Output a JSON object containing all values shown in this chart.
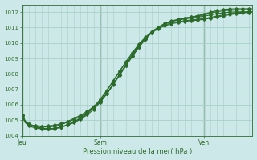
{
  "title": "Pression niveau de la mer( hPa )",
  "ylim": [
    1004.0,
    1012.5
  ],
  "yticks": [
    1004,
    1005,
    1006,
    1007,
    1008,
    1009,
    1010,
    1011,
    1012
  ],
  "bg_color": "#cce8e8",
  "grid_color": "#a8d0c8",
  "line_color": "#2d6b2d",
  "text_color": "#2d6b2d",
  "xtick_labels": [
    "Jeu",
    "Sam",
    "Ven"
  ],
  "xtick_positions": [
    0,
    24,
    56
  ],
  "total_points": 72,
  "lines": [
    [
      1005.3,
      1004.85,
      1004.72,
      1004.68,
      1004.65,
      1004.63,
      1004.62,
      1004.62,
      1004.63,
      1004.65,
      1004.68,
      1004.72,
      1004.78,
      1004.85,
      1004.93,
      1005.02,
      1005.12,
      1005.22,
      1005.33,
      1005.45,
      1005.58,
      1005.72,
      1005.88,
      1006.05,
      1006.25,
      1006.48,
      1006.74,
      1007.02,
      1007.32,
      1007.63,
      1007.94,
      1008.25,
      1008.56,
      1008.87,
      1009.17,
      1009.47,
      1009.75,
      1010.02,
      1010.27,
      1010.5,
      1010.7,
      1010.88,
      1011.03,
      1011.15,
      1011.25,
      1011.33,
      1011.4,
      1011.46,
      1011.51,
      1011.56,
      1011.6,
      1011.64,
      1011.68,
      1011.72,
      1011.77,
      1011.82,
      1011.87,
      1011.93,
      1011.99,
      1012.05,
      1012.1,
      1012.14,
      1012.17,
      1012.19,
      1012.2,
      1012.21,
      1012.22,
      1012.22,
      1012.22,
      1012.22,
      1012.22,
      1012.22
    ],
    [
      1005.3,
      1004.88,
      1004.73,
      1004.67,
      1004.63,
      1004.6,
      1004.58,
      1004.57,
      1004.57,
      1004.58,
      1004.61,
      1004.66,
      1004.72,
      1004.79,
      1004.87,
      1004.96,
      1005.05,
      1005.15,
      1005.26,
      1005.38,
      1005.51,
      1005.65,
      1005.81,
      1006.0,
      1006.21,
      1006.44,
      1006.7,
      1006.98,
      1007.28,
      1007.59,
      1007.91,
      1008.22,
      1008.54,
      1008.84,
      1009.14,
      1009.44,
      1009.72,
      1009.99,
      1010.24,
      1010.47,
      1010.68,
      1010.86,
      1011.02,
      1011.15,
      1011.26,
      1011.35,
      1011.42,
      1011.48,
      1011.53,
      1011.57,
      1011.61,
      1011.65,
      1011.68,
      1011.71,
      1011.75,
      1011.79,
      1011.83,
      1011.88,
      1011.93,
      1011.98,
      1012.02,
      1012.06,
      1012.09,
      1012.11,
      1012.12,
      1012.13,
      1012.14,
      1012.14,
      1012.14,
      1012.15,
      1012.15,
      1012.15
    ],
    [
      1005.2,
      1004.82,
      1004.65,
      1004.56,
      1004.5,
      1004.46,
      1004.44,
      1004.42,
      1004.42,
      1004.43,
      1004.46,
      1004.5,
      1004.55,
      1004.61,
      1004.68,
      1004.76,
      1004.85,
      1004.95,
      1005.07,
      1005.2,
      1005.35,
      1005.52,
      1005.71,
      1005.92,
      1006.16,
      1006.42,
      1006.7,
      1007.0,
      1007.32,
      1007.64,
      1007.97,
      1008.29,
      1008.62,
      1008.94,
      1009.25,
      1009.55,
      1009.83,
      1010.09,
      1010.32,
      1010.54,
      1010.73,
      1010.89,
      1011.03,
      1011.15,
      1011.24,
      1011.32,
      1011.38,
      1011.44,
      1011.48,
      1011.52,
      1011.56,
      1011.59,
      1011.62,
      1011.65,
      1011.68,
      1011.71,
      1011.75,
      1011.78,
      1011.82,
      1011.86,
      1011.9,
      1011.93,
      1011.96,
      1011.98,
      1012.0,
      1012.01,
      1012.01,
      1012.02,
      1012.02,
      1012.02,
      1012.03,
      1012.03
    ],
    [
      1005.3,
      1004.9,
      1004.73,
      1004.63,
      1004.55,
      1004.5,
      1004.46,
      1004.44,
      1004.43,
      1004.44,
      1004.46,
      1004.5,
      1004.55,
      1004.62,
      1004.7,
      1004.79,
      1004.89,
      1005.0,
      1005.13,
      1005.27,
      1005.44,
      1005.62,
      1005.83,
      1006.06,
      1006.31,
      1006.59,
      1006.88,
      1007.2,
      1007.52,
      1007.84,
      1008.16,
      1008.47,
      1008.78,
      1009.08,
      1009.38,
      1009.66,
      1009.92,
      1010.16,
      1010.38,
      1010.57,
      1010.73,
      1010.87,
      1010.99,
      1011.09,
      1011.17,
      1011.24,
      1011.3,
      1011.34,
      1011.38,
      1011.41,
      1011.44,
      1011.47,
      1011.49,
      1011.51,
      1011.54,
      1011.56,
      1011.59,
      1011.62,
      1011.66,
      1011.7,
      1011.74,
      1011.78,
      1011.82,
      1011.86,
      1011.9,
      1011.93,
      1011.96,
      1011.98,
      1012.0,
      1012.01,
      1012.02,
      1012.03
    ],
    [
      1005.3,
      1004.93,
      1004.77,
      1004.67,
      1004.6,
      1004.54,
      1004.5,
      1004.47,
      1004.46,
      1004.46,
      1004.48,
      1004.52,
      1004.57,
      1004.64,
      1004.72,
      1004.81,
      1004.91,
      1005.03,
      1005.16,
      1005.31,
      1005.47,
      1005.66,
      1005.86,
      1006.09,
      1006.34,
      1006.62,
      1006.91,
      1007.22,
      1007.54,
      1007.86,
      1008.17,
      1008.48,
      1008.78,
      1009.07,
      1009.36,
      1009.63,
      1009.88,
      1010.11,
      1010.32,
      1010.51,
      1010.67,
      1010.81,
      1010.93,
      1011.03,
      1011.11,
      1011.18,
      1011.24,
      1011.29,
      1011.33,
      1011.36,
      1011.39,
      1011.42,
      1011.44,
      1011.46,
      1011.48,
      1011.51,
      1011.54,
      1011.57,
      1011.6,
      1011.64,
      1011.68,
      1011.72,
      1011.76,
      1011.8,
      1011.84,
      1011.87,
      1011.9,
      1011.93,
      1011.95,
      1011.97,
      1011.98,
      1011.99
    ]
  ],
  "vline_x_positions": [
    0,
    24,
    56
  ],
  "minor_x_interval": 2,
  "marker_every": 2,
  "figsize": [
    3.2,
    2.0
  ],
  "dpi": 100
}
